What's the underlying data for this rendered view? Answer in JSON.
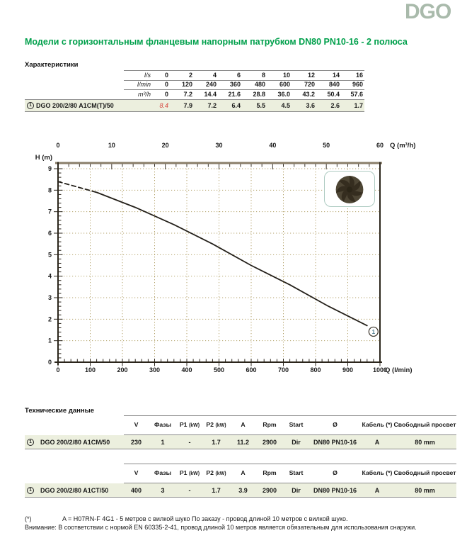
{
  "header": {
    "logo": "DGO",
    "title": "Модели с горизонтальным фланцевым напорным патрубком DN80 PN10-16 - 2 полюса"
  },
  "characteristics": {
    "heading": "Характеристики",
    "unit_rows": [
      {
        "unit": "l/s",
        "values": [
          "0",
          "2",
          "4",
          "6",
          "8",
          "10",
          "12",
          "14",
          "16"
        ]
      },
      {
        "unit": "l/min",
        "values": [
          "0",
          "120",
          "240",
          "360",
          "480",
          "600",
          "720",
          "840",
          "960"
        ]
      },
      {
        "unit": "m³/h",
        "values": [
          "0",
          "7.2",
          "14.4",
          "21.6",
          "28.8",
          "36.0",
          "43.2",
          "50.4",
          "57.6"
        ]
      }
    ],
    "model_row": {
      "index": "1",
      "model": "DGO 200/2/80 A1CM(T)/50",
      "values": [
        "8.4",
        "7.9",
        "7.2",
        "6.4",
        "5.5",
        "4.5",
        "3.6",
        "2.6",
        "1.7"
      ],
      "first_value_highlighted": true
    }
  },
  "chart_data": {
    "type": "line",
    "title": "",
    "grid": "dotted",
    "x_axis_bottom": {
      "label": "Q (l/min)",
      "min": 0,
      "max": 1000,
      "major_step": 100,
      "minor_step": 20,
      "tick_labels": [
        "0",
        "100",
        "200",
        "300",
        "400",
        "500",
        "600",
        "700",
        "800",
        "900",
        "1000"
      ]
    },
    "x_axis_top": {
      "label": "Q (m³/h)",
      "min": 0,
      "max": 60,
      "major_step": 10,
      "minor_step": 2,
      "tick_labels": [
        "0",
        "10",
        "20",
        "30",
        "40",
        "50",
        "60"
      ]
    },
    "y_axis": {
      "label": "H (m)",
      "min": 0,
      "max": 9,
      "major_step": 1,
      "minor_step": 0.2,
      "tick_labels": [
        "0",
        "1",
        "2",
        "3",
        "4",
        "5",
        "6",
        "7",
        "8",
        "9"
      ]
    },
    "series": [
      {
        "name": "1",
        "q_lmin": [
          0,
          120,
          240,
          360,
          480,
          600,
          720,
          840,
          960
        ],
        "h_m": [
          8.4,
          7.9,
          7.2,
          6.4,
          5.5,
          4.5,
          3.6,
          2.6,
          1.7
        ],
        "dash_end_q": 130,
        "end_marker": "1"
      }
    ]
  },
  "technical": {
    "heading": "Технические данные",
    "headers": [
      {
        "t": "V"
      },
      {
        "t": "Фазы"
      },
      {
        "t": "P1",
        "s": "(kW)"
      },
      {
        "t": "P2",
        "s": "(kW)"
      },
      {
        "t": "A"
      },
      {
        "t": "Rpm"
      },
      {
        "t": "Start"
      },
      {
        "t": "Ø"
      },
      {
        "t": "Кабель (*)"
      },
      {
        "t": "Свободный просвет"
      }
    ],
    "tables": [
      {
        "index": "1",
        "model": "DGO 200/2/80 A1CM/50",
        "values": [
          "230",
          "1",
          "-",
          "1.7",
          "11.2",
          "2900",
          "Dir",
          "DN80 PN10-16",
          "A",
          "80 mm"
        ]
      },
      {
        "index": "1",
        "model": "DGO 200/2/80 A1CT/50",
        "values": [
          "400",
          "3",
          "-",
          "1.7",
          "3.9",
          "2900",
          "Dir",
          "DN80 PN10-16",
          "A",
          "80 mm"
        ]
      }
    ]
  },
  "footnotes": {
    "marker": "(*)",
    "line1": "A = H07RN-F 4G1 - 5 метров с вилкой шуко По заказу - провод длиной 10 метров с вилкой шуко.",
    "line2": "Внимание: В соответствии с нормой EN 60335-2-41, провод длиной 10 метров является обязательным для использования снаружи."
  },
  "colors": {
    "accent_green": "#00A04B",
    "logo_gray_green": "#A9BAAB",
    "row_highlight": "#ECEFDE",
    "value_red": "#D6463E",
    "grid_tan": "#B3A26B",
    "axis_dark": "#2B251B",
    "top_axis_bar": "#8A7E68",
    "curve_dark": "#24201A",
    "marker_number_teal": "#4C7B8F"
  }
}
